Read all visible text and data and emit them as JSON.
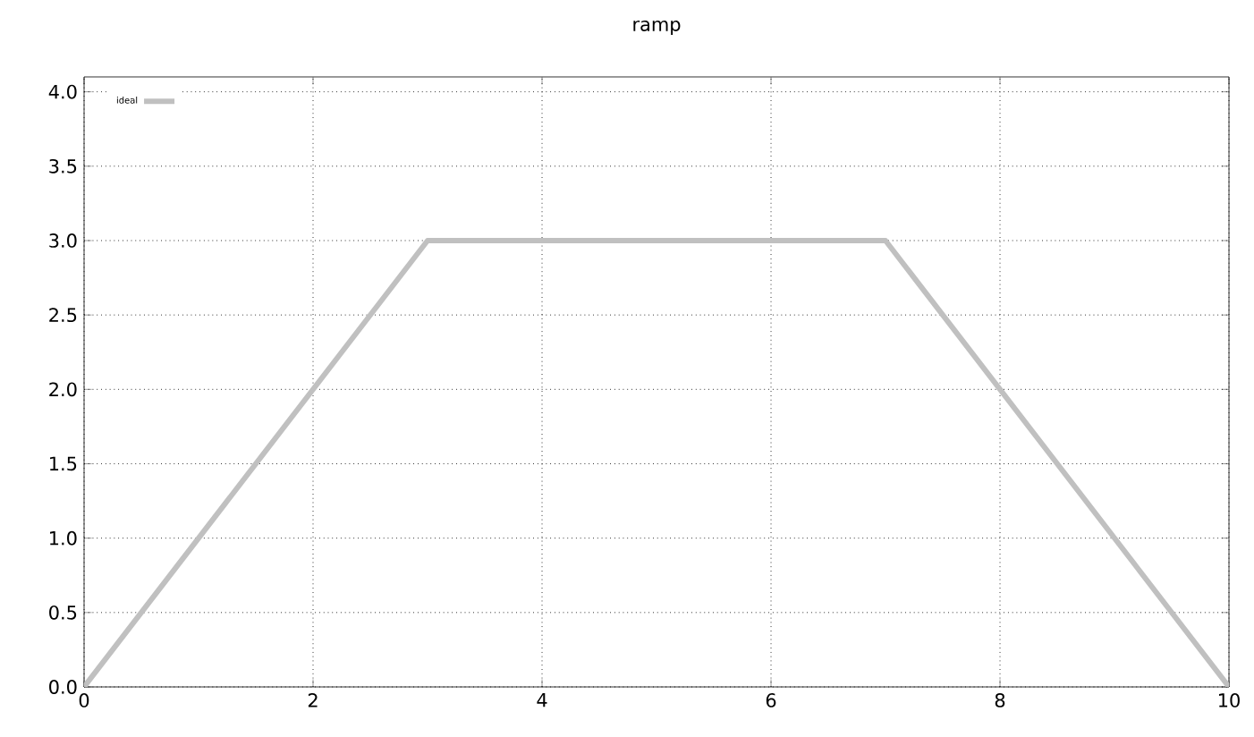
{
  "chart_data": {
    "type": "line",
    "title": "ramp",
    "x": [
      0,
      3,
      7,
      10
    ],
    "series": [
      {
        "name": "ideal",
        "color": "#c0c0c0",
        "values": [
          0,
          3,
          3,
          0
        ]
      }
    ],
    "xlim": [
      0,
      10
    ],
    "xticks": [
      0,
      2,
      4,
      6,
      8,
      10
    ],
    "ylim": [
      0,
      4.1
    ],
    "yticks": [
      {
        "value": 0,
        "label": "0.0"
      },
      {
        "value": 0.5,
        "label": "0.5"
      },
      {
        "value": 1,
        "label": "1.0"
      },
      {
        "value": 1.5,
        "label": "1.5"
      },
      {
        "value": 2,
        "label": "2.0"
      },
      {
        "value": 2.5,
        "label": "2.5"
      },
      {
        "value": 3,
        "label": "3.0"
      },
      {
        "value": 3.5,
        "label": "3.5"
      },
      {
        "value": 4,
        "label": "4.0"
      }
    ],
    "grid": true,
    "legend": "top left",
    "marker": "none",
    "line_style": "solid"
  }
}
